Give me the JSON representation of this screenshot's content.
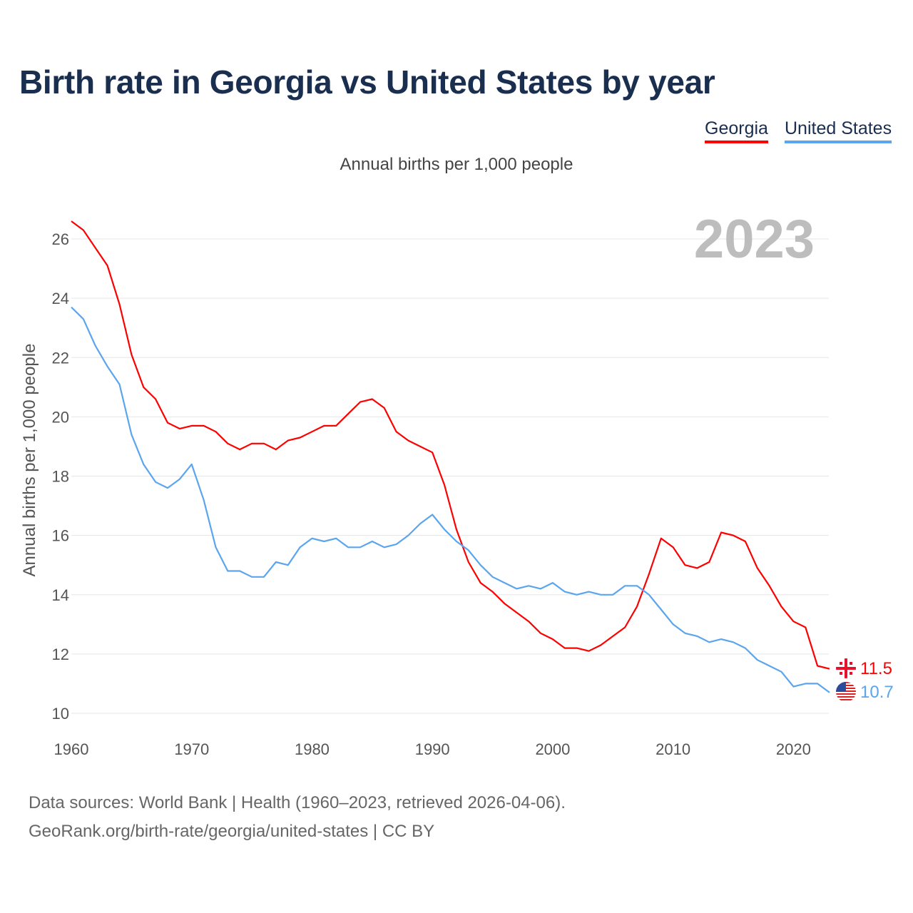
{
  "title": "Birth rate in Georgia vs United States by year",
  "legend": [
    "Georgia",
    "United States"
  ],
  "subtitle": "Annual births per 1,000 people",
  "year_watermark": "2023",
  "footer": {
    "line1": "Data sources: World Bank | Health (1960–2023, retrieved 2026-04-06).",
    "line2": "GeoRank.org/birth-rate/georgia/united-states | CC BY"
  },
  "chart_data": {
    "type": "line",
    "title": "Birth rate in Georgia vs United States by year",
    "xlabel": "",
    "ylabel": "Annual births per 1,000 people",
    "xlim": [
      1960,
      2023
    ],
    "ylim": [
      10,
      26.6
    ],
    "xticks": [
      1960,
      1970,
      1980,
      1990,
      2000,
      2010,
      2020
    ],
    "yticks": [
      10,
      12,
      14,
      16,
      18,
      20,
      22,
      24,
      26
    ],
    "grid": true,
    "legend_position": "top-right",
    "x_start": 1960,
    "series": [
      {
        "name": "Georgia",
        "color": "#ff0000",
        "end_label": "11.5",
        "flag_icon": "georgia-flag-icon",
        "values": [
          26.6,
          26.3,
          25.7,
          25.1,
          23.8,
          22.1,
          21.0,
          20.6,
          19.8,
          19.6,
          19.7,
          19.7,
          19.5,
          19.1,
          18.9,
          19.1,
          19.1,
          18.9,
          19.2,
          19.3,
          19.5,
          19.7,
          19.7,
          20.1,
          20.5,
          20.6,
          20.3,
          19.5,
          19.2,
          19.0,
          18.8,
          17.7,
          16.2,
          15.1,
          14.4,
          14.1,
          13.7,
          13.4,
          13.1,
          12.7,
          12.5,
          12.2,
          12.2,
          12.1,
          12.3,
          12.6,
          12.9,
          13.6,
          14.7,
          15.9,
          15.6,
          15.0,
          14.9,
          15.1,
          16.1,
          16.0,
          15.8,
          14.9,
          14.3,
          13.6,
          13.1,
          12.9,
          11.6,
          11.5
        ]
      },
      {
        "name": "United States",
        "color": "#5aa5ee",
        "end_label": "10.7",
        "flag_icon": "us-flag-icon",
        "values": [
          23.7,
          23.3,
          22.4,
          21.7,
          21.1,
          19.4,
          18.4,
          17.8,
          17.6,
          17.9,
          18.4,
          17.2,
          15.6,
          14.8,
          14.8,
          14.6,
          14.6,
          15.1,
          15.0,
          15.6,
          15.9,
          15.8,
          15.9,
          15.6,
          15.6,
          15.8,
          15.6,
          15.7,
          16.0,
          16.4,
          16.7,
          16.2,
          15.8,
          15.5,
          15.0,
          14.6,
          14.4,
          14.2,
          14.3,
          14.2,
          14.4,
          14.1,
          14.0,
          14.1,
          14.0,
          14.0,
          14.3,
          14.3,
          14.0,
          13.5,
          13.0,
          12.7,
          12.6,
          12.4,
          12.5,
          12.4,
          12.2,
          11.8,
          11.6,
          11.4,
          10.9,
          11.0,
          11.0,
          10.7
        ]
      }
    ]
  }
}
